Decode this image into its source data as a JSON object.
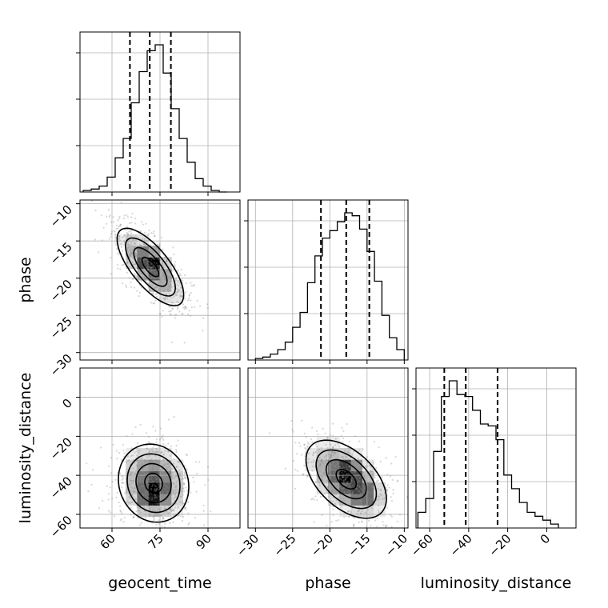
{
  "chart_data": {
    "type": "corner",
    "parameters": [
      "geocent_time",
      "phase",
      "luminosity_distance"
    ],
    "axis_labels": {
      "x": [
        "geocent_time",
        "phase",
        "luminosity_distance"
      ],
      "y": [
        "phase",
        "luminosity_distance"
      ]
    },
    "ranges": {
      "geocent_time": [
        50,
        100
      ],
      "phase": [
        -31,
        -9.5
      ],
      "luminosity_distance": [
        -67,
        15
      ]
    },
    "ticks": {
      "geocent_time": [
        60,
        75,
        90
      ],
      "phase": [
        -30,
        -25,
        -20,
        -15,
        -10
      ],
      "luminosity_distance": [
        -60,
        -40,
        -20,
        0
      ]
    },
    "tick_labels": {
      "geocent_time": [
        "60",
        "75",
        "90"
      ],
      "phase": [
        "−30",
        "−25",
        "−20",
        "−15",
        "−10"
      ],
      "luminosity_distance": [
        "−60",
        "−40",
        "−20",
        "0"
      ]
    },
    "grid": true,
    "quantiles": {
      "geocent_time": [
        65.6,
        71.8,
        78.4
      ],
      "phase": [
        -21.2,
        -17.8,
        -14.7
      ],
      "luminosity_distance": [
        -52.5,
        -41.5,
        -25.2
      ]
    },
    "histograms": {
      "geocent_time": {
        "bin_edges": [
          51,
          53.5,
          56,
          58.5,
          61,
          63.5,
          66,
          68.5,
          71,
          73.5,
          76,
          78.5,
          81,
          83.5,
          86,
          88.5,
          91,
          93.5,
          96
        ],
        "counts": [
          1,
          2,
          4,
          10,
          23,
          36,
          60,
          81,
          95,
          99,
          80,
          56,
          36,
          20,
          9,
          4,
          1,
          0
        ]
      },
      "phase": {
        "bin_edges": [
          -30,
          -29,
          -28,
          -27,
          -26,
          -25,
          -24,
          -23,
          -22,
          -21,
          -20,
          -19,
          -18,
          -17,
          -16,
          -15,
          -14,
          -13,
          -12,
          -11,
          -10
        ],
        "counts": [
          1,
          2,
          4,
          7,
          12,
          22,
          32,
          52,
          70,
          82,
          87,
          93,
          99,
          97,
          88,
          73,
          53,
          30,
          15,
          7
        ]
      },
      "luminosity_distance": {
        "bin_edges": [
          -66,
          -62,
          -58,
          -54,
          -50,
          -46,
          -42,
          -38,
          -34,
          -30,
          -26,
          -22,
          -18,
          -14,
          -10,
          -6,
          -2,
          2,
          6
        ],
        "counts": [
          8,
          15,
          39,
          67,
          75,
          68,
          67,
          60,
          53,
          52,
          45,
          27,
          20,
          13,
          8,
          6,
          4,
          2
        ]
      }
    },
    "density_2d": [
      {
        "x": "geocent_time",
        "y": "phase",
        "center": [
          72,
          -18.5
        ],
        "spread": [
          5.2,
          2.6
        ],
        "correlation": -0.72,
        "peaks": [
          [
            73.5,
            -18.0
          ],
          [
            71.5,
            -17.3
          ]
        ]
      },
      {
        "x": "geocent_time",
        "y": "luminosity_distance",
        "center": [
          73,
          -44
        ],
        "spread": [
          5.5,
          10
        ],
        "correlation": -0.1,
        "peaks": [
          [
            71.5,
            -53.0
          ],
          [
            74,
            -49
          ]
        ]
      },
      {
        "x": "phase",
        "y": "luminosity_distance",
        "center": [
          -17.8,
          -42
        ],
        "spread": [
          2.7,
          10
        ],
        "correlation": -0.5,
        "peaks": [
          [
            -15.2,
            -50.0
          ],
          [
            -17.5,
            -37.5
          ]
        ]
      }
    ],
    "contour_levels": [
      0.118,
      0.393,
      0.675,
      0.865
    ]
  }
}
